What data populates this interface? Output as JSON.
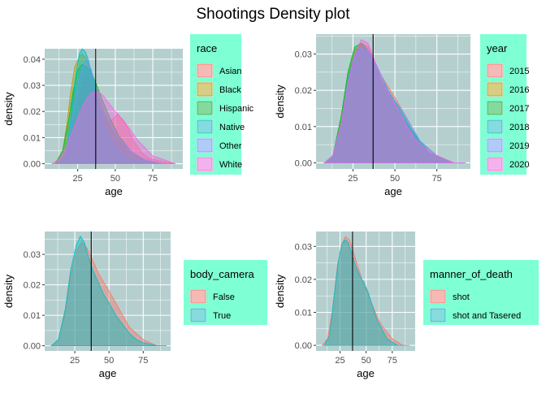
{
  "title": "Shootings Density plot",
  "colors": {
    "panel_bg": "#b5cfcf",
    "legend_bg": "#7fffd4",
    "grid": "#ffffff",
    "vline": "#000000"
  },
  "chart_data": [
    {
      "type": "area",
      "subtype": "density",
      "xlabel": "age",
      "ylabel": "density",
      "xlim": [
        3,
        95
      ],
      "ylim": [
        -0.002,
        0.044
      ],
      "xticks": [
        25,
        50,
        75
      ],
      "yticks": [
        0.0,
        0.01,
        0.02,
        0.03,
        0.04
      ],
      "ytick_labels": [
        "0.00",
        "0.01",
        "0.02",
        "0.03",
        "0.04"
      ],
      "vline": 37,
      "legend_title": "race",
      "series": [
        {
          "name": "Asian",
          "color": "#f8766d",
          "x": [
            13,
            18,
            22,
            26,
            30,
            34,
            37,
            42,
            46,
            52,
            58,
            63,
            68,
            73,
            80,
            90
          ],
          "y": [
            0.0,
            0.003,
            0.014,
            0.027,
            0.033,
            0.031,
            0.025,
            0.018,
            0.016,
            0.019,
            0.014,
            0.008,
            0.004,
            0.002,
            0.001,
            0.0
          ]
        },
        {
          "name": "Black",
          "color": "#b79f00",
          "x": [
            10,
            15,
            18,
            20,
            23,
            26,
            28,
            31,
            34,
            37,
            42,
            47,
            52,
            60,
            70,
            80,
            88
          ],
          "y": [
            0.0,
            0.005,
            0.016,
            0.026,
            0.037,
            0.041,
            0.042,
            0.04,
            0.035,
            0.029,
            0.021,
            0.014,
            0.009,
            0.004,
            0.001,
            0.0,
            0.0
          ]
        },
        {
          "name": "Hispanic",
          "color": "#00ba38",
          "x": [
            10,
            15,
            19,
            22,
            25,
            28,
            31,
            34,
            37,
            41,
            46,
            52,
            60,
            70,
            80,
            85
          ],
          "y": [
            0.0,
            0.005,
            0.017,
            0.028,
            0.036,
            0.038,
            0.037,
            0.035,
            0.031,
            0.025,
            0.018,
            0.011,
            0.005,
            0.001,
            0.0,
            0.0
          ]
        },
        {
          "name": "Native",
          "color": "#00bfc4",
          "x": [
            12,
            17,
            20,
            23,
            26,
            28,
            30,
            32,
            35,
            38,
            42,
            46,
            52,
            58,
            65,
            72
          ],
          "y": [
            0.0,
            0.004,
            0.015,
            0.031,
            0.042,
            0.044,
            0.043,
            0.04,
            0.032,
            0.024,
            0.016,
            0.01,
            0.005,
            0.002,
            0.001,
            0.0
          ]
        },
        {
          "name": "Other",
          "color": "#619cff",
          "x": [
            12,
            17,
            21,
            25,
            28,
            31,
            34,
            37,
            41,
            46,
            52,
            60,
            68,
            75,
            82
          ],
          "y": [
            0.0,
            0.004,
            0.017,
            0.03,
            0.037,
            0.04,
            0.036,
            0.029,
            0.022,
            0.016,
            0.01,
            0.005,
            0.002,
            0.001,
            0.0
          ]
        },
        {
          "name": "White",
          "color": "#f564e3",
          "x": [
            8,
            13,
            18,
            22,
            26,
            30,
            34,
            38,
            42,
            46,
            50,
            55,
            60,
            65,
            70,
            75,
            80,
            85,
            90
          ],
          "y": [
            0.0,
            0.002,
            0.007,
            0.013,
            0.019,
            0.024,
            0.027,
            0.028,
            0.026,
            0.023,
            0.02,
            0.017,
            0.013,
            0.009,
            0.006,
            0.003,
            0.002,
            0.001,
            0.0
          ]
        }
      ]
    },
    {
      "type": "area",
      "subtype": "density",
      "xlabel": "age",
      "ylabel": "density",
      "xlim": [
        3,
        95
      ],
      "ylim": [
        -0.0017,
        0.0355
      ],
      "xticks": [
        25,
        50,
        75
      ],
      "yticks": [
        0.0,
        0.01,
        0.02,
        0.03
      ],
      "ytick_labels": [
        "0.00",
        "0.01",
        "0.02",
        "0.03"
      ],
      "vline": 37,
      "legend_title": "year",
      "series": [
        {
          "name": "2015",
          "color": "#f8766d",
          "x": [
            8,
            13,
            18,
            22,
            26,
            30,
            34,
            38,
            42,
            46,
            50,
            55,
            60,
            65,
            70,
            75,
            80,
            85,
            92
          ],
          "y": [
            0.0,
            0.002,
            0.011,
            0.022,
            0.03,
            0.033,
            0.032,
            0.028,
            0.024,
            0.021,
            0.018,
            0.014,
            0.01,
            0.006,
            0.004,
            0.002,
            0.001,
            0.0,
            0.0
          ]
        },
        {
          "name": "2016",
          "color": "#b79f00",
          "x": [
            8,
            13,
            18,
            22,
            26,
            30,
            34,
            38,
            42,
            46,
            50,
            55,
            60,
            65,
            70,
            75,
            80,
            85,
            92
          ],
          "y": [
            0.0,
            0.002,
            0.012,
            0.024,
            0.031,
            0.033,
            0.031,
            0.027,
            0.023,
            0.02,
            0.017,
            0.013,
            0.009,
            0.006,
            0.003,
            0.002,
            0.001,
            0.0,
            0.0
          ]
        },
        {
          "name": "2017",
          "color": "#00ba38",
          "x": [
            8,
            13,
            18,
            22,
            26,
            30,
            34,
            38,
            42,
            46,
            50,
            55,
            60,
            65,
            70,
            75,
            80,
            85,
            92
          ],
          "y": [
            0.0,
            0.002,
            0.013,
            0.025,
            0.032,
            0.033,
            0.031,
            0.027,
            0.023,
            0.019,
            0.016,
            0.012,
            0.009,
            0.005,
            0.003,
            0.002,
            0.001,
            0.0,
            0.0
          ]
        },
        {
          "name": "2018",
          "color": "#00bfc4",
          "x": [
            8,
            13,
            18,
            22,
            26,
            30,
            34,
            38,
            42,
            46,
            50,
            55,
            60,
            65,
            70,
            75,
            80,
            85,
            92
          ],
          "y": [
            0.0,
            0.002,
            0.011,
            0.023,
            0.03,
            0.032,
            0.031,
            0.027,
            0.023,
            0.02,
            0.017,
            0.013,
            0.009,
            0.006,
            0.003,
            0.002,
            0.001,
            0.0,
            0.0
          ]
        },
        {
          "name": "2019",
          "color": "#619cff",
          "x": [
            8,
            13,
            18,
            22,
            26,
            30,
            34,
            38,
            42,
            46,
            50,
            55,
            60,
            65,
            70,
            75,
            80,
            85,
            92
          ],
          "y": [
            0.0,
            0.002,
            0.011,
            0.022,
            0.029,
            0.032,
            0.031,
            0.028,
            0.024,
            0.02,
            0.017,
            0.014,
            0.01,
            0.006,
            0.004,
            0.002,
            0.001,
            0.0,
            0.0
          ]
        },
        {
          "name": "2020",
          "color": "#f564e3",
          "x": [
            8,
            13,
            18,
            22,
            26,
            30,
            34,
            38,
            42,
            46,
            50,
            55,
            60,
            65,
            70,
            75,
            80,
            85,
            92
          ],
          "y": [
            0.0,
            0.002,
            0.011,
            0.022,
            0.03,
            0.034,
            0.033,
            0.028,
            0.023,
            0.019,
            0.016,
            0.012,
            0.008,
            0.005,
            0.003,
            0.002,
            0.001,
            0.0,
            0.0
          ]
        }
      ]
    },
    {
      "type": "area",
      "subtype": "density",
      "xlabel": "age",
      "ylabel": "density",
      "xlim": [
        3,
        95
      ],
      "ylim": [
        -0.0017,
        0.0375
      ],
      "xticks": [
        25,
        50,
        75
      ],
      "yticks": [
        0.0,
        0.01,
        0.02,
        0.03
      ],
      "ytick_labels": [
        "0.00",
        "0.01",
        "0.02",
        "0.03"
      ],
      "vline": 37,
      "legend_title": "body_camera",
      "series": [
        {
          "name": "False",
          "color": "#f8766d",
          "x": [
            8,
            13,
            18,
            22,
            26,
            30,
            34,
            38,
            42,
            46,
            50,
            55,
            60,
            65,
            70,
            75,
            80,
            85,
            92
          ],
          "y": [
            0.0,
            0.002,
            0.011,
            0.023,
            0.031,
            0.034,
            0.032,
            0.028,
            0.024,
            0.021,
            0.018,
            0.014,
            0.01,
            0.006,
            0.004,
            0.002,
            0.001,
            0.0,
            0.0
          ]
        },
        {
          "name": "True",
          "color": "#00bfc4",
          "x": [
            8,
            13,
            18,
            22,
            26,
            29,
            32,
            35,
            38,
            42,
            46,
            50,
            55,
            60,
            65,
            70,
            75,
            80,
            85,
            92
          ],
          "y": [
            0.0,
            0.002,
            0.012,
            0.025,
            0.033,
            0.036,
            0.034,
            0.029,
            0.025,
            0.021,
            0.017,
            0.014,
            0.01,
            0.007,
            0.004,
            0.002,
            0.001,
            0.0005,
            0.0,
            0.0
          ]
        }
      ]
    },
    {
      "type": "area",
      "subtype": "density",
      "xlabel": "age",
      "ylabel": "density",
      "xlim": [
        2,
        97
      ],
      "ylim": [
        -0.0017,
        0.0345
      ],
      "xticks": [
        25,
        50,
        75
      ],
      "yticks": [
        0.0,
        0.01,
        0.02,
        0.03
      ],
      "ytick_labels": [
        "0.00",
        "0.01",
        "0.02",
        "0.03"
      ],
      "vline": 37,
      "legend_title": "manner_of_death",
      "series": [
        {
          "name": "shot",
          "color": "#f8766d",
          "x": [
            8,
            13,
            18,
            22,
            26,
            30,
            34,
            38,
            42,
            46,
            50,
            55,
            60,
            65,
            70,
            75,
            80,
            85,
            92
          ],
          "y": [
            0.0,
            0.002,
            0.011,
            0.023,
            0.03,
            0.033,
            0.032,
            0.028,
            0.024,
            0.02,
            0.017,
            0.013,
            0.009,
            0.006,
            0.004,
            0.002,
            0.001,
            0.0,
            0.0
          ]
        },
        {
          "name": "shot and Tasered",
          "color": "#00bfc4",
          "x": [
            10,
            15,
            19,
            23,
            27,
            30,
            33,
            36,
            40,
            44,
            48,
            52,
            56,
            60,
            65,
            70,
            75,
            80,
            88
          ],
          "y": [
            0.0,
            0.003,
            0.014,
            0.025,
            0.031,
            0.032,
            0.031,
            0.028,
            0.024,
            0.021,
            0.019,
            0.016,
            0.012,
            0.008,
            0.005,
            0.002,
            0.001,
            0.0,
            0.0
          ]
        }
      ]
    }
  ]
}
